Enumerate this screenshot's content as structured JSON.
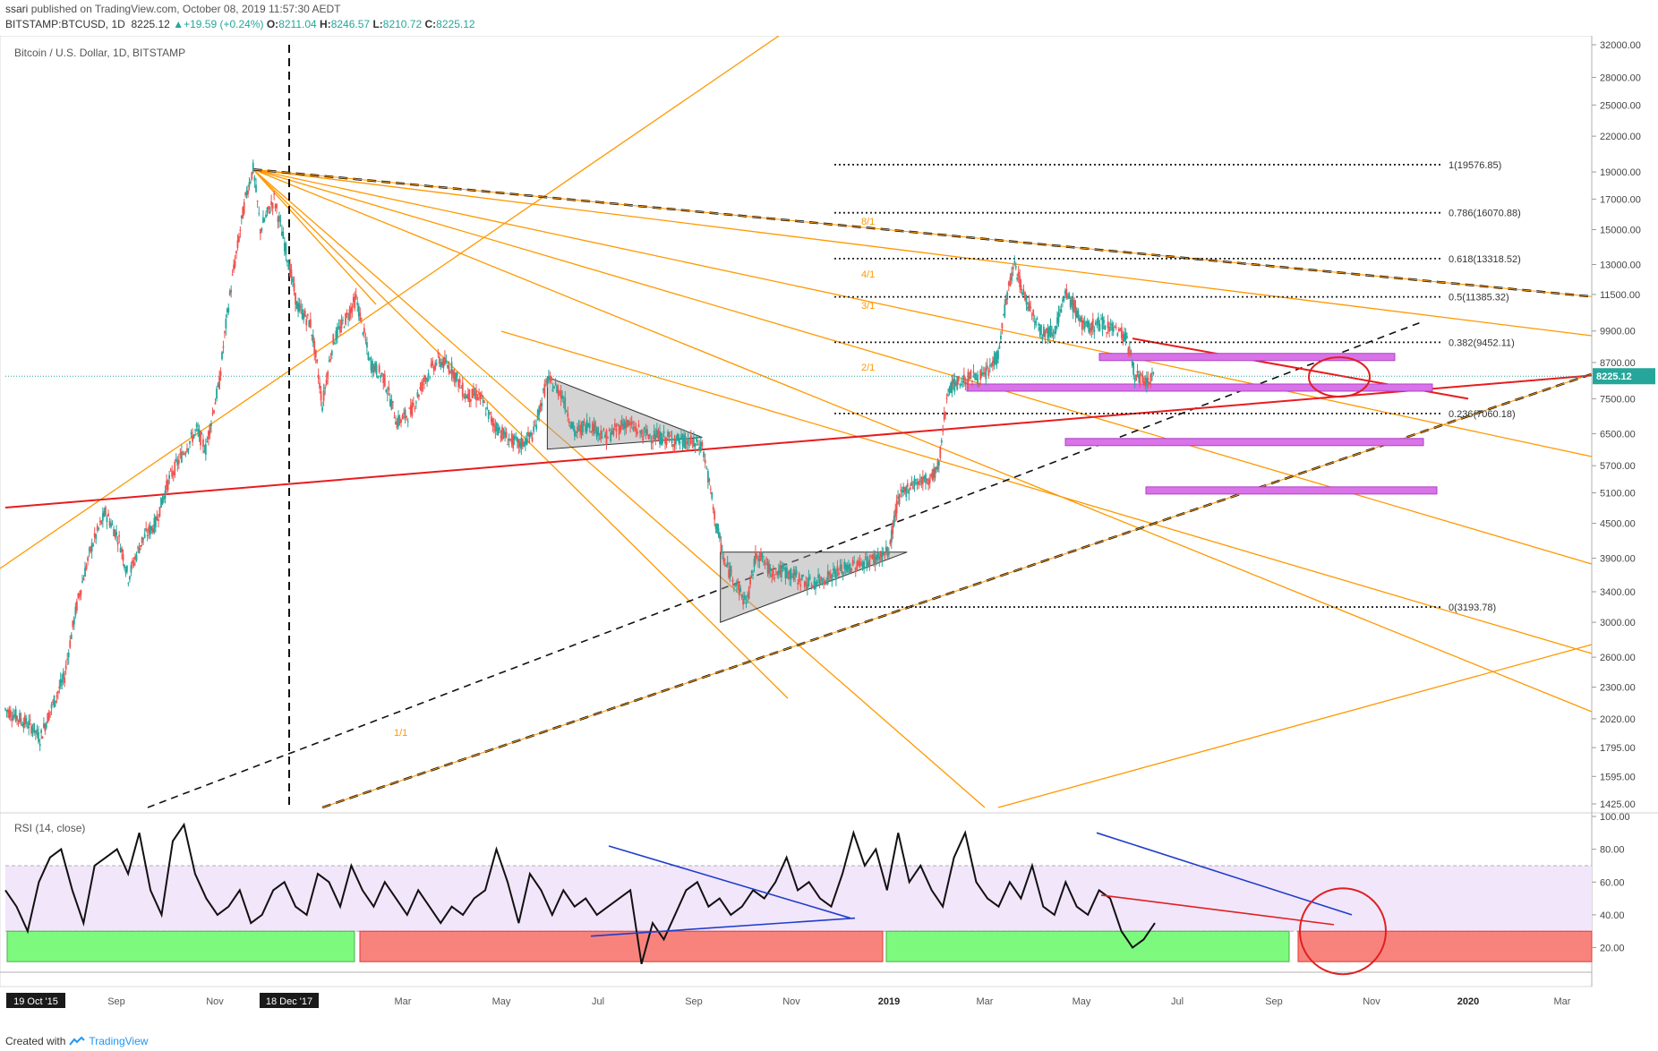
{
  "header": {
    "publisher": "ssari",
    "published_text": "published on TradingView.com, October 08, 2019 11:57:30 AEDT",
    "symbol": "BITSTAMP:BTCUSD, 1D",
    "last": "8225.12",
    "change": "+19.59 (+0.24%)",
    "open_label": "O:",
    "open": "8211.04",
    "high_label": "H:",
    "high": "8246.57",
    "low_label": "L:",
    "low": "8210.72",
    "close_label": "C:",
    "close": "8225.12"
  },
  "chart_title": "Bitcoin / U.S. Dollar, 1D, BITSTAMP",
  "rsi_title": "RSI (14, close)",
  "footer": {
    "created_with": "Created with",
    "brand": "TradingView"
  },
  "colors": {
    "up": "#26a69a",
    "down": "#ef5350",
    "orange": "#ff9800",
    "red_trend": "#e81c1c",
    "rsi_band": "#f2e6fb",
    "green_zone": "#7dfa7d",
    "red_zone": "#f8837d",
    "magenta_zone": "#d873e8",
    "price_badge": "#26a69a"
  },
  "chart_data": [
    {
      "type": "candlestick",
      "title": "Bitcoin / U.S. Dollar, 1D, BITSTAMP",
      "y_scale": "log",
      "ylim": [
        1425,
        32000
      ],
      "y_ticks": [
        "32000.00",
        "28000.00",
        "25000.00",
        "22000.00",
        "19000.00",
        "17000.00",
        "15000.00",
        "13000.00",
        "11500.00",
        "9900.00",
        "8700.00",
        "7500.00",
        "6500.00",
        "5700.00",
        "5100.00",
        "4500.00",
        "3900.00",
        "3400.00",
        "3000.00",
        "2600.00",
        "2300.00",
        "2020.00",
        "1795.00",
        "1595.00",
        "1425.00"
      ],
      "y_tick_values": [
        32000,
        28000,
        25000,
        22000,
        19000,
        17000,
        15000,
        13000,
        11500,
        9900,
        8700,
        7500,
        6500,
        5700,
        5100,
        4500,
        3900,
        3400,
        3000,
        2600,
        2300,
        2020,
        1795,
        1595,
        1425
      ],
      "current_price": "8225.12",
      "fib_levels": [
        {
          "label": "1(19576.85)",
          "value": 19576.85
        },
        {
          "label": "0.786(16070.88)",
          "value": 16070.88
        },
        {
          "label": "0.618(13318.52)",
          "value": 13318.52
        },
        {
          "label": "0.5(11385.32)",
          "value": 11385.32
        },
        {
          "label": "0.382(9452.11)",
          "value": 9452.11
        },
        {
          "label": "0.236(7060.18)",
          "value": 7060.18
        },
        {
          "label": "0(3193.78)",
          "value": 3193.78
        }
      ],
      "gann_labels": [
        "8/1",
        "4/1",
        "3/1",
        "2/1",
        "1/1"
      ],
      "price_path": [
        [
          0,
          2100
        ],
        [
          10,
          2050
        ],
        [
          20,
          2000
        ],
        [
          30,
          1950
        ],
        [
          38,
          1860
        ],
        [
          45,
          2000
        ],
        [
          55,
          2200
        ],
        [
          65,
          2400
        ],
        [
          80,
          3300
        ],
        [
          95,
          4100
        ],
        [
          110,
          4700
        ],
        [
          125,
          4200
        ],
        [
          135,
          3600
        ],
        [
          150,
          4200
        ],
        [
          165,
          4500
        ],
        [
          180,
          5400
        ],
        [
          195,
          6000
        ],
        [
          210,
          6600
        ],
        [
          220,
          6100
        ],
        [
          235,
          8000
        ],
        [
          245,
          11000
        ],
        [
          255,
          14000
        ],
        [
          265,
          17500
        ],
        [
          272,
          19200
        ],
        [
          280,
          15000
        ],
        [
          295,
          17000
        ],
        [
          305,
          14500
        ],
        [
          320,
          11000
        ],
        [
          335,
          10200
        ],
        [
          348,
          7300
        ],
        [
          360,
          9500
        ],
        [
          375,
          10500
        ],
        [
          385,
          11300
        ],
        [
          400,
          8700
        ],
        [
          415,
          8200
        ],
        [
          430,
          6800
        ],
        [
          445,
          7100
        ],
        [
          460,
          8100
        ],
        [
          475,
          8800
        ],
        [
          490,
          8500
        ],
        [
          505,
          7600
        ],
        [
          520,
          7600
        ],
        [
          535,
          6800
        ],
        [
          550,
          6400
        ],
        [
          565,
          6200
        ],
        [
          580,
          6500
        ],
        [
          595,
          8100
        ],
        [
          610,
          7700
        ],
        [
          625,
          6500
        ],
        [
          640,
          6800
        ],
        [
          660,
          6400
        ],
        [
          680,
          6800
        ],
        [
          700,
          6500
        ],
        [
          720,
          6400
        ],
        [
          745,
          6300
        ],
        [
          765,
          6200
        ],
        [
          770,
          5600
        ],
        [
          780,
          4500
        ],
        [
          790,
          3800
        ],
        [
          800,
          3600
        ],
        [
          810,
          3300
        ],
        [
          815,
          3300
        ],
        [
          825,
          4000
        ],
        [
          840,
          3700
        ],
        [
          855,
          3700
        ],
        [
          870,
          3600
        ],
        [
          885,
          3500
        ],
        [
          900,
          3600
        ],
        [
          915,
          3700
        ],
        [
          935,
          3800
        ],
        [
          955,
          3900
        ],
        [
          970,
          4000
        ],
        [
          980,
          4950
        ],
        [
          995,
          5300
        ],
        [
          1015,
          5400
        ],
        [
          1025,
          5700
        ],
        [
          1035,
          7800
        ],
        [
          1045,
          8000
        ],
        [
          1060,
          8200
        ],
        [
          1075,
          8200
        ],
        [
          1090,
          9000
        ],
        [
          1100,
          11500
        ],
        [
          1108,
          13000
        ],
        [
          1118,
          11500
        ],
        [
          1130,
          10500
        ],
        [
          1140,
          9800
        ],
        [
          1152,
          10000
        ],
        [
          1165,
          11500
        ],
        [
          1175,
          10800
        ],
        [
          1185,
          10000
        ],
        [
          1200,
          10200
        ],
        [
          1215,
          10100
        ],
        [
          1230,
          9700
        ],
        [
          1240,
          8300
        ],
        [
          1250,
          8000
        ],
        [
          1262,
          8200
        ]
      ]
    },
    {
      "type": "line",
      "title": "RSI (14, close)",
      "ylim": [
        5,
        100
      ],
      "y_ticks": [
        "100.00",
        "80.00",
        "60.00",
        "40.00",
        "20.00"
      ],
      "y_tick_values": [
        100,
        80,
        60,
        40,
        20
      ],
      "band": [
        30,
        70
      ],
      "x_labels": [
        "19 Oct '15",
        "Sep",
        "Nov",
        "18 Dec '17",
        "Mar",
        "May",
        "Jul",
        "Sep",
        "Nov",
        "2019",
        "Mar",
        "May",
        "Jul",
        "Sep",
        "Nov",
        "2020",
        "Mar"
      ],
      "series": [
        {
          "values": [
            55,
            45,
            30,
            60,
            75,
            80,
            55,
            35,
            70,
            75,
            80,
            65,
            90,
            55,
            40,
            85,
            95,
            65,
            50,
            40,
            45,
            55,
            35,
            40,
            55,
            60,
            45,
            40,
            65,
            60,
            45,
            70,
            55,
            45,
            60,
            50,
            40,
            55,
            45,
            35,
            45,
            40,
            50,
            55,
            80,
            60,
            35,
            65,
            55,
            40,
            55,
            45,
            50,
            40,
            45,
            50,
            55,
            10,
            35,
            25,
            40,
            55,
            60,
            45,
            50,
            40,
            45,
            55,
            50,
            60,
            75,
            55,
            60,
            50,
            45,
            65,
            90,
            70,
            80,
            55,
            90,
            60,
            70,
            55,
            45,
            75,
            90,
            60,
            50,
            45,
            60,
            50,
            70,
            45,
            40,
            60,
            45,
            40,
            55,
            50,
            30,
            20,
            25,
            35
          ]
        }
      ]
    }
  ]
}
